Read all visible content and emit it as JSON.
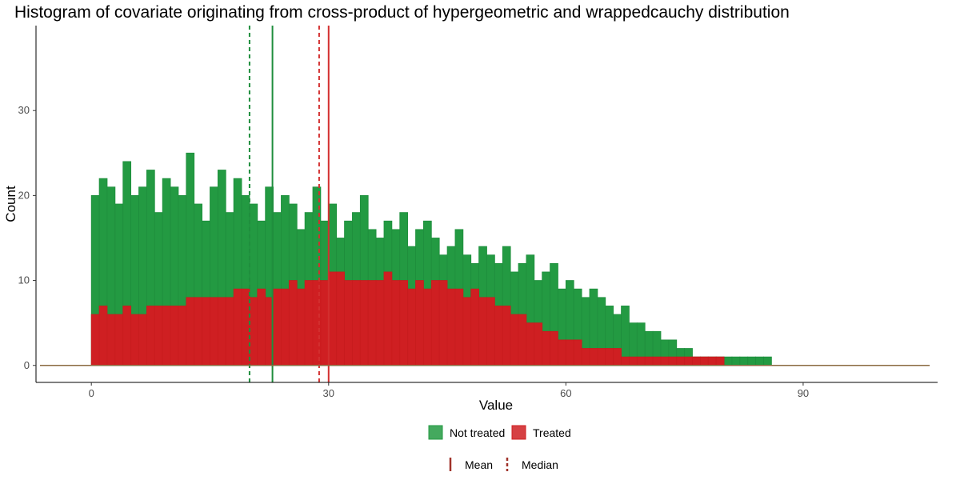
{
  "chart_data": {
    "type": "bar",
    "title": "Histogram of covariate originating from cross-product of hypergeometric and wrappedcauchy distribution",
    "xlabel": "Value",
    "ylabel": "Count",
    "xlim": [
      -7,
      107
    ],
    "ylim": [
      -2,
      40
    ],
    "xticks": [
      0,
      30,
      60,
      90
    ],
    "yticks": [
      0,
      10,
      20,
      30
    ],
    "grid": false,
    "legend_position": "bottom",
    "series": [
      {
        "name": "Not treated",
        "color": "#1f8e3d",
        "fill": "#239a42",
        "mean": 22.9,
        "median": 20.0,
        "x_start": 0,
        "x_step": 1,
        "values": [
          20,
          22,
          21,
          19,
          24,
          20,
          21,
          23,
          18,
          22,
          21,
          20,
          25,
          19,
          17,
          21,
          23,
          18,
          22,
          20,
          19,
          17,
          21,
          18,
          20,
          19,
          16,
          18,
          21,
          17,
          19,
          15,
          17,
          18,
          20,
          16,
          15,
          17,
          16,
          18,
          14,
          16,
          17,
          15,
          13,
          14,
          16,
          13,
          12,
          14,
          13,
          12,
          14,
          11,
          12,
          13,
          10,
          11,
          12,
          9,
          10,
          9,
          8,
          9,
          8,
          7,
          6,
          7,
          5,
          5,
          4,
          4,
          3,
          3,
          2,
          2,
          1,
          1,
          1,
          1,
          1,
          1,
          1,
          1,
          1,
          1,
          0,
          0,
          0,
          0
        ]
      },
      {
        "name": "Treated",
        "color": "#c81c1e",
        "fill": "#cf1f22",
        "mean": 30.0,
        "median": 28.8,
        "x_start": 0,
        "x_step": 1,
        "values": [
          6,
          7,
          6,
          6,
          7,
          6,
          6,
          7,
          7,
          7,
          7,
          7,
          8,
          8,
          8,
          8,
          8,
          8,
          9,
          9,
          8,
          9,
          8,
          9,
          9,
          10,
          9,
          10,
          10,
          10,
          11,
          11,
          10,
          10,
          10,
          10,
          10,
          11,
          10,
          10,
          9,
          10,
          9,
          10,
          10,
          9,
          9,
          8,
          9,
          8,
          8,
          7,
          7,
          6,
          6,
          5,
          5,
          4,
          4,
          3,
          3,
          3,
          2,
          2,
          2,
          2,
          2,
          1,
          1,
          1,
          1,
          1,
          1,
          1,
          1,
          1,
          1,
          1,
          1,
          1,
          0,
          0,
          0,
          0,
          0,
          0,
          0,
          0,
          0,
          0,
          0,
          0,
          0,
          0,
          0,
          0,
          0,
          0,
          0,
          0,
          0
        ]
      }
    ],
    "reference_lines": [
      {
        "series": "Not treated",
        "stat": "mean",
        "x": 22.9,
        "style": "solid",
        "color": "#1f8e3d"
      },
      {
        "series": "Not treated",
        "stat": "median",
        "x": 20.0,
        "style": "dashed",
        "color": "#1f8e3d"
      },
      {
        "series": "Treated",
        "stat": "mean",
        "x": 30.0,
        "style": "solid",
        "color": "#d32f2f"
      },
      {
        "series": "Treated",
        "stat": "median",
        "x": 28.8,
        "style": "dashed",
        "color": "#d32f2f"
      }
    ],
    "legend_fill": [
      {
        "label": "Not treated",
        "color": "#239a42"
      },
      {
        "label": "Treated",
        "color": "#cf1f22"
      }
    ],
    "legend_lines": [
      {
        "label": "Mean",
        "style": "solid",
        "color": "#a0322a"
      },
      {
        "label": "Median",
        "style": "dashed",
        "color": "#a0322a"
      }
    ]
  }
}
